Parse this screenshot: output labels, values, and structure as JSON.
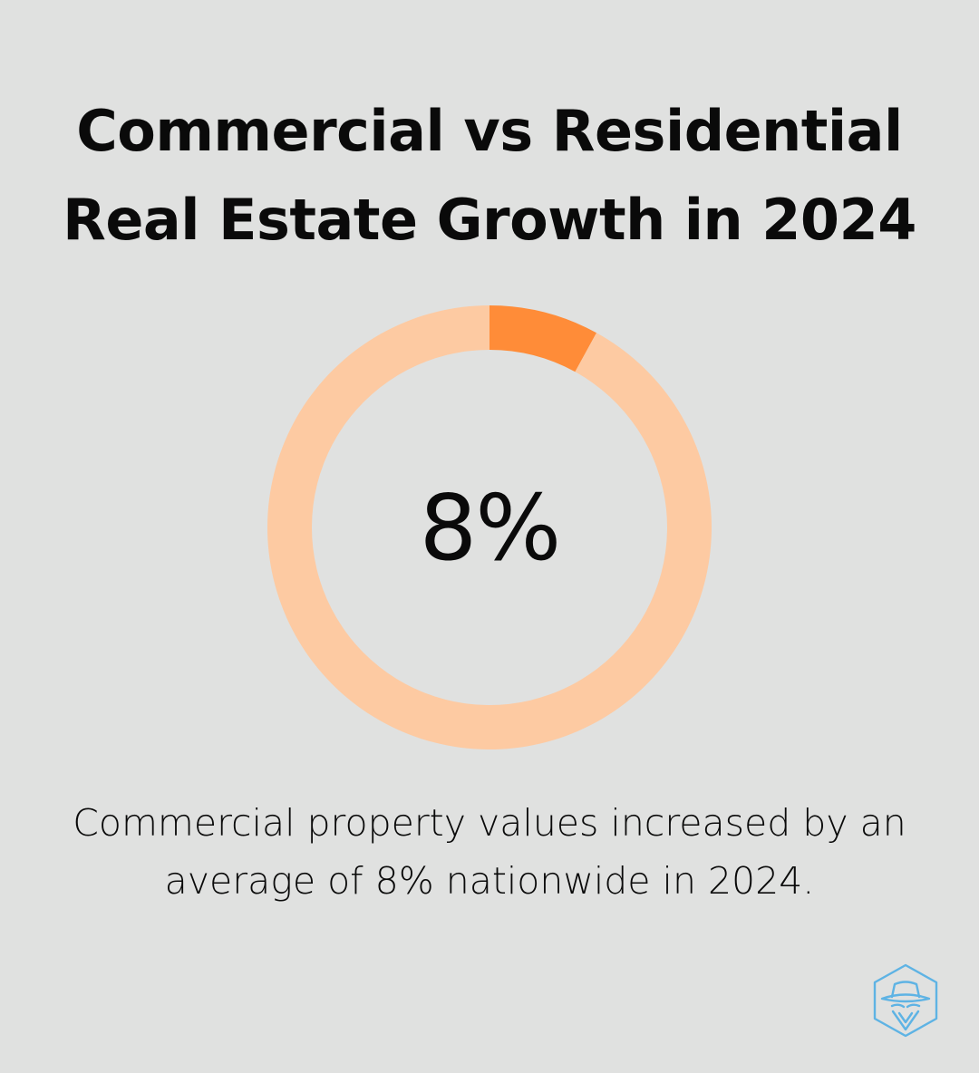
{
  "title": {
    "line1": "Commercial vs Residential",
    "line2": "Real Estate Growth in 2024"
  },
  "chart_data": {
    "type": "pie",
    "style": "donut",
    "values": [
      8,
      92
    ],
    "center_label": "8%",
    "colors": {
      "highlight": "#ff8c38",
      "remainder": "#fdcaa2"
    }
  },
  "caption": {
    "line1": "Commercial property values increased by an",
    "line2": "average of 8% nationwide in 2024."
  },
  "logo": {
    "icon": "spy-hat-hexagon-icon",
    "color": "#5eb3e4"
  }
}
